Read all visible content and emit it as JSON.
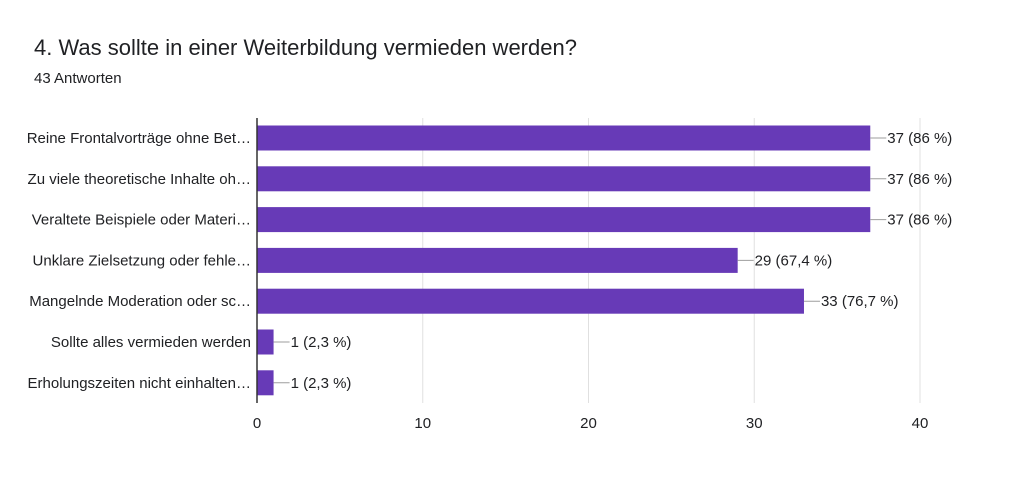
{
  "header": {
    "title": "4. Was sollte in einer Weiterbildung vermieden werden?",
    "response_count": "43 Antworten"
  },
  "colors": {
    "bar": "#673ab7",
    "grid": "#e0e0e0",
    "axis": "#333333",
    "text": "#202124"
  },
  "chart_data": {
    "type": "bar",
    "orientation": "horizontal",
    "categories": [
      "Reine Frontalvorträge ohne Bet…",
      "Zu viele theoretische Inhalte oh…",
      "Veraltete Beispiele oder Materi…",
      "Unklare Zielsetzung oder fehle…",
      "Mangelnde Moderation oder sc…",
      "Sollte alles vermieden werden",
      "Erholungszeiten nicht einhalten…"
    ],
    "values": [
      37,
      37,
      37,
      29,
      33,
      1,
      1
    ],
    "data_labels": [
      "37 (86 %)",
      "37 (86 %)",
      "37 (86 %)",
      "29 (67,4 %)",
      "33 (76,7 %)",
      "1 (2,3 %)",
      "1 (2,3 %)"
    ],
    "xlim": [
      0,
      40
    ],
    "xticks": [
      0,
      10,
      20,
      30,
      40
    ],
    "grid": true,
    "legend": "none"
  }
}
